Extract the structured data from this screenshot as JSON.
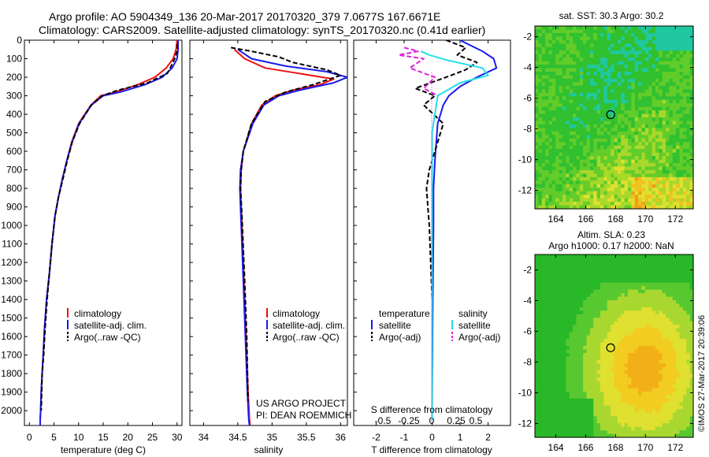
{
  "header": {
    "line1": "Argo profile: AO 5904349_136 20-Mar-2017 20170320_379 7.0677S 167.6671E",
    "line2": "Climatology: CARS2009. Satellite-adjusted climatology: synTS_20170320.nc (0.41d earlier)"
  },
  "credits": {
    "project": "US ARGO PROJECT",
    "pi": "PI: DEAN ROEMMICH",
    "imos": "©IMOS 27-Mar-2017 20:39:06"
  },
  "colors": {
    "climatology": "#ee1111",
    "satellite": "#1a1aee",
    "argo": "#000000",
    "sal_satellite": "#22e0e8",
    "sal_argo": "#e020e0"
  },
  "chart_data": [
    {
      "type": "line",
      "id": "temperature",
      "xlabel": "temperature (deg C)",
      "ylabel": "",
      "xlim": [
        -1,
        31
      ],
      "ylim": [
        2080,
        0
      ],
      "xticks": [
        0,
        5,
        10,
        15,
        20,
        25,
        30
      ],
      "xtick_labels": [
        "0",
        "5",
        "10",
        "15",
        "20",
        "25",
        "30"
      ],
      "yticks": [
        0,
        100,
        200,
        300,
        400,
        500,
        600,
        700,
        800,
        900,
        1000,
        1100,
        1200,
        1300,
        1400,
        1500,
        1600,
        1700,
        1800,
        1900,
        2000
      ],
      "ytick_labels": [
        "0",
        "100",
        "200",
        "300",
        "400",
        "500",
        "600",
        "700",
        "800",
        "900",
        "1000",
        "1100",
        "1200",
        "1300",
        "1400",
        "1500",
        "1600",
        "1700",
        "1800",
        "1900",
        "2000"
      ],
      "legend": [
        "climatology",
        "satellite-adj. clim.",
        "Argo(..raw -QC)"
      ],
      "series": [
        {
          "name": "climatology",
          "style": "solid",
          "color": "#ee1111",
          "x": [
            30.0,
            29.8,
            29.2,
            27.8,
            25.5,
            22.0,
            17.5,
            14.5,
            12.5,
            10.0,
            8.6,
            7.6,
            6.7,
            5.9,
            5.2,
            4.6,
            4.1,
            3.5,
            3.1,
            2.8,
            2.6,
            2.4,
            2.3,
            2.2,
            2.2
          ],
          "y": [
            0,
            50,
            100,
            150,
            200,
            240,
            280,
            300,
            350,
            450,
            550,
            650,
            750,
            850,
            950,
            1100,
            1250,
            1400,
            1550,
            1700,
            1800,
            1900,
            2000,
            2050,
            2080
          ]
        },
        {
          "name": "satellite-adj. clim.",
          "style": "solid",
          "color": "#1a1aee",
          "x": [
            30.2,
            30.2,
            30.0,
            29.0,
            27.0,
            23.5,
            18.5,
            15.0,
            12.6,
            10.1,
            8.7,
            7.6,
            6.7,
            5.9,
            5.2,
            4.6,
            4.1,
            3.5,
            3.1,
            2.8,
            2.6,
            2.4,
            2.3,
            2.2,
            2.2
          ],
          "y": [
            0,
            50,
            100,
            150,
            200,
            240,
            280,
            300,
            350,
            450,
            550,
            650,
            750,
            850,
            950,
            1100,
            1250,
            1400,
            1550,
            1700,
            1800,
            1900,
            2000,
            2050,
            2080
          ]
        },
        {
          "name": "Argo(..raw -QC)",
          "style": "dashed",
          "color": "#000000",
          "x": [
            30.1,
            30.0,
            29.5,
            28.8,
            28.0,
            24.0,
            18.0,
            14.8,
            12.6,
            10.2,
            8.7,
            7.7,
            6.8,
            5.9,
            5.2,
            4.6,
            4.1,
            3.6,
            3.2,
            2.9,
            2.6,
            2.5,
            2.4
          ],
          "y": [
            20,
            60,
            100,
            140,
            180,
            230,
            270,
            300,
            350,
            450,
            550,
            650,
            750,
            850,
            950,
            1100,
            1250,
            1400,
            1550,
            1700,
            1800,
            1900,
            2000
          ]
        }
      ]
    },
    {
      "type": "line",
      "id": "salinity",
      "xlabel": "salinity",
      "xlim": [
        33.8,
        36.1
      ],
      "ylim": [
        2080,
        0
      ],
      "xticks": [
        34,
        34.5,
        35,
        35.5,
        36
      ],
      "xtick_labels": [
        "34",
        "34.5",
        "35",
        "35.5",
        "36"
      ],
      "legend": [
        "climatology",
        "satellite-adj. clim.",
        "Argo(..raw -QC)"
      ],
      "series": [
        {
          "name": "climatology",
          "style": "solid",
          "color": "#ee1111",
          "x": [
            34.45,
            34.6,
            34.9,
            35.4,
            35.9,
            35.7,
            35.3,
            35.05,
            34.85,
            34.7,
            34.58,
            34.55,
            34.54,
            34.55,
            34.57,
            34.6,
            34.63,
            34.65,
            34.67,
            34.68
          ],
          "y": [
            50,
            100,
            150,
            180,
            210,
            240,
            270,
            300,
            350,
            450,
            600,
            700,
            800,
            900,
            1100,
            1400,
            1700,
            1900,
            2050,
            2080
          ]
        },
        {
          "name": "satellite-adj. clim.",
          "style": "solid",
          "color": "#1a1aee",
          "x": [
            34.5,
            34.7,
            35.2,
            35.8,
            36.1,
            35.9,
            35.4,
            35.1,
            34.88,
            34.72,
            34.58,
            34.54,
            34.53,
            34.54,
            34.56,
            34.59,
            34.62,
            34.64,
            34.66,
            34.67
          ],
          "y": [
            50,
            100,
            140,
            170,
            200,
            230,
            270,
            300,
            350,
            450,
            600,
            700,
            800,
            900,
            1100,
            1400,
            1700,
            1900,
            2050,
            2080
          ]
        },
        {
          "name": "Argo(..raw -QC)",
          "style": "dashed",
          "color": "#000000",
          "x": [
            34.4,
            34.7,
            35.1,
            35.3,
            35.8,
            36.0,
            35.6,
            35.2,
            34.9,
            34.7,
            34.58,
            34.55,
            34.54,
            34.56,
            34.6,
            34.63,
            34.65
          ],
          "y": [
            40,
            60,
            90,
            120,
            160,
            190,
            240,
            280,
            330,
            450,
            600,
            700,
            800,
            950,
            1300,
            1600,
            1950
          ]
        }
      ]
    },
    {
      "type": "line",
      "id": "difference",
      "xlabel": "T difference from climatology",
      "xlabel_top": "S difference from climatology",
      "xlim": [
        -2.8,
        2.8
      ],
      "ylim": [
        2080,
        0
      ],
      "xticks": [
        -2,
        -1,
        0,
        1,
        2
      ],
      "xtick_labels": [
        "-2",
        "-1",
        "0",
        "1",
        "2"
      ],
      "top_ticks": [
        -0.5,
        -0.25,
        0,
        0.25,
        0.5
      ],
      "top_tick_labels": [
        "-0.5",
        "-0.25",
        "0",
        "0.25",
        "0.5"
      ],
      "top_tick_positions_T": [
        -2.0,
        -1.0,
        0.0,
        1.0,
        2.0
      ],
      "legend_temperature_title": "temperature",
      "legend_salinity_title": "salinity",
      "legend": [
        "satellite",
        "Argo(-adj)",
        "satellite",
        "Argo(-adj)"
      ],
      "series": [
        {
          "name": "T satellite",
          "style": "solid",
          "color": "#1a1aee",
          "x": [
            1.0,
            1.4,
            1.8,
            2.2,
            2.3,
            1.6,
            1.0,
            0.6,
            0.4,
            0.2,
            0.15,
            0.1,
            0.05,
            0.05,
            0.02,
            0.0
          ],
          "y": [
            0,
            30,
            60,
            100,
            150,
            200,
            250,
            300,
            350,
            450,
            550,
            650,
            800,
            1000,
            1500,
            2000
          ]
        },
        {
          "name": "T Argo(-adj)",
          "style": "dashed",
          "color": "#000000",
          "x": [
            0.5,
            1.2,
            0.9,
            1.6,
            1.2,
            0.5,
            -0.6,
            0.1,
            -0.3,
            0.4,
            0.2,
            -0.1,
            -0.2,
            -0.1,
            0.0
          ],
          "y": [
            0,
            40,
            80,
            120,
            160,
            200,
            260,
            300,
            350,
            450,
            550,
            700,
            800,
            1000,
            1400
          ]
        },
        {
          "name": "S satellite",
          "style": "solid",
          "color": "#22e0e8",
          "x": [
            -0.4,
            -0.1,
            0.6,
            1.8,
            2.0,
            1.0,
            0.2,
            0.0,
            0.0,
            0.0,
            0.0
          ],
          "y": [
            60,
            80,
            110,
            150,
            190,
            230,
            300,
            500,
            800,
            1200,
            2050
          ]
        },
        {
          "name": "S Argo(-adj)",
          "style": "dashed",
          "color": "#e020e0",
          "x": [
            -1.0,
            -0.5,
            -1.2,
            -0.3,
            -0.8,
            0.1,
            -0.3,
            0.2
          ],
          "y": [
            40,
            60,
            80,
            100,
            150,
            200,
            260,
            300
          ]
        }
      ]
    },
    {
      "type": "heatmap",
      "id": "sst_map",
      "title": "sat. SST: 30.3 Argo: 30.2",
      "xlim": [
        162.6,
        173.2
      ],
      "ylim": [
        -13.2,
        -1.3
      ],
      "xticks": [
        164,
        166,
        168,
        170,
        172
      ],
      "xtick_labels": [
        "164",
        "166",
        "168",
        "170",
        "172"
      ],
      "yticks": [
        -2,
        -4,
        -6,
        -8,
        -10,
        -12
      ],
      "ytick_labels": [
        "-2",
        "-4",
        "-6",
        "-8",
        "-10",
        "-12"
      ],
      "marker": {
        "lon": 167.67,
        "lat": -7.07
      }
    },
    {
      "type": "heatmap",
      "id": "sla_map",
      "title_line1": "Altim. SLA: 0.23",
      "title_line2": "Argo h1000: 0.17 h2000: NaN",
      "xlim": [
        162.6,
        173.2
      ],
      "ylim": [
        -12.9,
        -1.0
      ],
      "xticks": [
        164,
        166,
        168,
        170,
        172
      ],
      "xtick_labels": [
        "164",
        "166",
        "168",
        "170",
        "172"
      ],
      "yticks": [
        -2,
        -4,
        -6,
        -8,
        -10,
        -12
      ],
      "ytick_labels": [
        "-2",
        "-4",
        "-6",
        "-8",
        "-10",
        "-12"
      ],
      "marker": {
        "lon": 167.67,
        "lat": -7.07
      }
    }
  ]
}
